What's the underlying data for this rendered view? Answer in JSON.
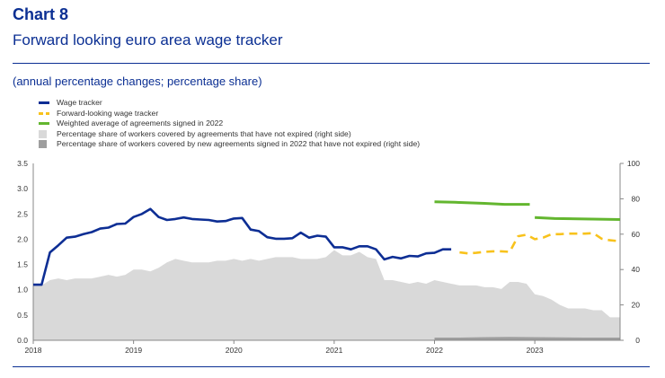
{
  "header": {
    "chart_number": "Chart 8",
    "title": "Forward looking euro area wage tracker",
    "subtitle": "(annual percentage changes; percentage share)"
  },
  "colors": {
    "accent": "#0b2f93",
    "wage_tracker": "#0d2e94",
    "forward_looking": "#f8c21c",
    "weighted_average": "#63b62f",
    "share_not_expired": "#d9d9d9",
    "share_new_2022": "#9e9e9e"
  },
  "chart_data": {
    "type": "line",
    "x_range": [
      2018.0,
      2023.85
    ],
    "x_ticks": [
      "2018",
      "2019",
      "2020",
      "2021",
      "2022",
      "2023"
    ],
    "ylim_left": [
      0,
      3.5
    ],
    "y_ticks_left": [
      "0.0",
      "0.5",
      "1.0",
      "1.5",
      "2.0",
      "2.5",
      "3.0",
      "3.5"
    ],
    "ylim_right": [
      0,
      100
    ],
    "y_ticks_right": [
      "0",
      "20",
      "40",
      "60",
      "80",
      "100"
    ],
    "legend": [
      {
        "label": "Wage tracker",
        "kind": "line",
        "color": "#0d2e94"
      },
      {
        "label": "Forward-looking wage tracker",
        "kind": "dashed",
        "color": "#f8c21c"
      },
      {
        "label": "Weighted average of agreements signed in 2022",
        "kind": "line",
        "color": "#63b62f"
      },
      {
        "label": "Percentage share of workers covered by agreements that have not expired (right side)",
        "kind": "box",
        "color": "#d9d9d9"
      },
      {
        "label": "Percentage share of workers covered by new agreements signed in 2022 that have not expired (right side)",
        "kind": "box",
        "color": "#9e9e9e"
      }
    ],
    "series": [
      {
        "name": "Wage tracker",
        "axis": "left",
        "style": "solid",
        "points": [
          [
            2018.0,
            1.1
          ],
          [
            2018.083,
            1.1
          ],
          [
            2018.167,
            1.74
          ],
          [
            2018.25,
            1.88
          ],
          [
            2018.333,
            2.03
          ],
          [
            2018.417,
            2.05
          ],
          [
            2018.5,
            2.1
          ],
          [
            2018.583,
            2.14
          ],
          [
            2018.667,
            2.21
          ],
          [
            2018.75,
            2.23
          ],
          [
            2018.833,
            2.3
          ],
          [
            2018.917,
            2.31
          ],
          [
            2019.0,
            2.44
          ],
          [
            2019.083,
            2.5
          ],
          [
            2019.167,
            2.6
          ],
          [
            2019.25,
            2.44
          ],
          [
            2019.333,
            2.38
          ],
          [
            2019.417,
            2.4
          ],
          [
            2019.5,
            2.43
          ],
          [
            2019.583,
            2.4
          ],
          [
            2019.667,
            2.39
          ],
          [
            2019.75,
            2.38
          ],
          [
            2019.833,
            2.35
          ],
          [
            2019.917,
            2.36
          ],
          [
            2020.0,
            2.41
          ],
          [
            2020.083,
            2.42
          ],
          [
            2020.167,
            2.19
          ],
          [
            2020.25,
            2.16
          ],
          [
            2020.333,
            2.04
          ],
          [
            2020.417,
            2.01
          ],
          [
            2020.5,
            2.01
          ],
          [
            2020.583,
            2.02
          ],
          [
            2020.667,
            2.13
          ],
          [
            2020.75,
            2.03
          ],
          [
            2020.833,
            2.07
          ],
          [
            2020.917,
            2.05
          ],
          [
            2021.0,
            1.84
          ],
          [
            2021.083,
            1.84
          ],
          [
            2021.167,
            1.8
          ],
          [
            2021.25,
            1.86
          ],
          [
            2021.333,
            1.86
          ],
          [
            2021.417,
            1.8
          ],
          [
            2021.5,
            1.6
          ],
          [
            2021.583,
            1.65
          ],
          [
            2021.667,
            1.62
          ],
          [
            2021.75,
            1.67
          ],
          [
            2021.833,
            1.66
          ],
          [
            2021.917,
            1.72
          ],
          [
            2022.0,
            1.73
          ],
          [
            2022.083,
            1.8
          ],
          [
            2022.167,
            1.8
          ]
        ]
      },
      {
        "name": "Forward-looking wage tracker",
        "axis": "left",
        "style": "dashed",
        "points": [
          [
            2022.25,
            1.74
          ],
          [
            2022.333,
            1.72
          ],
          [
            2022.417,
            1.73
          ],
          [
            2022.5,
            1.75
          ],
          [
            2022.583,
            1.76
          ],
          [
            2022.667,
            1.76
          ],
          [
            2022.75,
            1.75
          ],
          [
            2022.833,
            2.06
          ],
          [
            2022.917,
            2.09
          ],
          [
            2023.0,
            2.0
          ],
          [
            2023.083,
            2.03
          ],
          [
            2023.167,
            2.1
          ],
          [
            2023.25,
            2.1
          ],
          [
            2023.333,
            2.11
          ],
          [
            2023.417,
            2.11
          ],
          [
            2023.5,
            2.11
          ],
          [
            2023.583,
            2.12
          ],
          [
            2023.667,
            2.01
          ],
          [
            2023.75,
            1.98
          ],
          [
            2023.85,
            1.96
          ]
        ]
      },
      {
        "name": "Weighted average of agreements signed in 2022",
        "axis": "left",
        "style": "solid",
        "segments": [
          [
            [
              2022.0,
              2.74
            ],
            [
              2022.2,
              2.73
            ],
            [
              2022.5,
              2.71
            ],
            [
              2022.7,
              2.69
            ],
            [
              2022.95,
              2.69
            ]
          ],
          [
            [
              2023.0,
              2.43
            ],
            [
              2023.2,
              2.41
            ],
            [
              2023.5,
              2.4
            ],
            [
              2023.85,
              2.39
            ]
          ]
        ]
      },
      {
        "name": "Percentage share of workers covered by agreements that have not expired (right side)",
        "axis": "right",
        "style": "area",
        "points": [
          [
            2018.0,
            31
          ],
          [
            2018.083,
            31
          ],
          [
            2018.167,
            34
          ],
          [
            2018.25,
            35
          ],
          [
            2018.333,
            34
          ],
          [
            2018.417,
            35
          ],
          [
            2018.5,
            35
          ],
          [
            2018.583,
            35
          ],
          [
            2018.667,
            36
          ],
          [
            2018.75,
            37
          ],
          [
            2018.833,
            36
          ],
          [
            2018.917,
            37
          ],
          [
            2019.0,
            40
          ],
          [
            2019.083,
            40
          ],
          [
            2019.167,
            39
          ],
          [
            2019.25,
            41
          ],
          [
            2019.333,
            44
          ],
          [
            2019.417,
            46
          ],
          [
            2019.5,
            45
          ],
          [
            2019.583,
            44
          ],
          [
            2019.667,
            44
          ],
          [
            2019.75,
            44
          ],
          [
            2019.833,
            45
          ],
          [
            2019.917,
            45
          ],
          [
            2020.0,
            46
          ],
          [
            2020.083,
            45
          ],
          [
            2020.167,
            46
          ],
          [
            2020.25,
            45
          ],
          [
            2020.333,
            46
          ],
          [
            2020.417,
            47
          ],
          [
            2020.5,
            47
          ],
          [
            2020.583,
            47
          ],
          [
            2020.667,
            46
          ],
          [
            2020.75,
            46
          ],
          [
            2020.833,
            46
          ],
          [
            2020.917,
            47
          ],
          [
            2021.0,
            51
          ],
          [
            2021.083,
            48
          ],
          [
            2021.167,
            48
          ],
          [
            2021.25,
            50
          ],
          [
            2021.333,
            47
          ],
          [
            2021.417,
            46
          ],
          [
            2021.5,
            34
          ],
          [
            2021.583,
            34
          ],
          [
            2021.667,
            33
          ],
          [
            2021.75,
            32
          ],
          [
            2021.833,
            33
          ],
          [
            2021.917,
            32
          ],
          [
            2022.0,
            34
          ],
          [
            2022.083,
            33
          ],
          [
            2022.167,
            32
          ],
          [
            2022.25,
            31
          ],
          [
            2022.333,
            31
          ],
          [
            2022.417,
            31
          ],
          [
            2022.5,
            30
          ],
          [
            2022.583,
            30
          ],
          [
            2022.667,
            29
          ],
          [
            2022.75,
            33
          ],
          [
            2022.833,
            33
          ],
          [
            2022.917,
            32
          ],
          [
            2023.0,
            26
          ],
          [
            2023.083,
            25
          ],
          [
            2023.167,
            23
          ],
          [
            2023.25,
            20
          ],
          [
            2023.333,
            18
          ],
          [
            2023.417,
            18
          ],
          [
            2023.5,
            18
          ],
          [
            2023.583,
            17
          ],
          [
            2023.667,
            17
          ],
          [
            2023.75,
            13
          ],
          [
            2023.85,
            13
          ]
        ]
      },
      {
        "name": "Percentage share of workers covered by new agreements signed in 2022 that have not expired (right side)",
        "axis": "right",
        "style": "area",
        "points": [
          [
            2022.0,
            1.5
          ],
          [
            2022.25,
            1.5
          ],
          [
            2022.5,
            1.8
          ],
          [
            2022.75,
            1.9
          ],
          [
            2023.0,
            1.8
          ],
          [
            2023.25,
            1.6
          ],
          [
            2023.5,
            1.5
          ],
          [
            2023.85,
            1.5
          ]
        ]
      }
    ]
  }
}
